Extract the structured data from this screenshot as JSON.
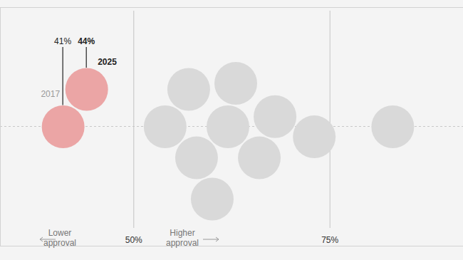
{
  "chart_data": {
    "type": "beeswarm",
    "xlim": [
      33,
      92
    ],
    "xticks": [
      {
        "value": 50,
        "label": "50%"
      },
      {
        "value": 75,
        "label": "75%"
      }
    ],
    "grid": true,
    "tick_labels": "x",
    "annotations": [
      "Lower approval",
      "Higher approval"
    ],
    "series": [
      {
        "color": "#eba5a5",
        "values": [
          41,
          44
        ],
        "value_labels": [
          "41%",
          "44%"
        ],
        "labels": [
          "2017",
          "2025"
        ]
      },
      {
        "color": "#d9d9d9",
        "values": [
          54,
          57,
          58,
          60,
          62,
          63,
          66,
          68,
          73,
          83
        ]
      }
    ]
  }
}
